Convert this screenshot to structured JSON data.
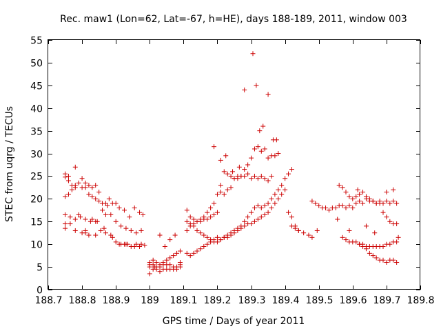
{
  "chart_data": {
    "type": "scatter",
    "title": "Rec. maw1 (Lon=62, Lat=-67, h=HE), days 188-189, 2011, window 003",
    "xlabel": "GPS time / Days of year 2011",
    "ylabel": "STEC from uqrg / TECUs",
    "xlim": [
      188.7,
      189.8
    ],
    "ylim": [
      0,
      55
    ],
    "xticks": [
      188.7,
      188.8,
      188.9,
      189,
      189.1,
      189.2,
      189.3,
      189.4,
      189.5,
      189.6,
      189.7,
      189.8
    ],
    "xtick_labels": [
      "188.7",
      "188.8",
      "188.9",
      "189",
      "189.1",
      "189.2",
      "189.3",
      "189.4",
      "189.5",
      "189.6",
      "189.7",
      "189.8"
    ],
    "yticks": [
      0,
      5,
      10,
      15,
      20,
      25,
      30,
      35,
      40,
      45,
      50,
      55
    ],
    "ytick_labels": [
      "0",
      "5",
      "10",
      "15",
      "20",
      "25",
      "30",
      "35",
      "40",
      "45",
      "50",
      "55"
    ],
    "grid": false,
    "legend": "none",
    "marker_color": "#cc0000",
    "marker": "plus",
    "series": [
      {
        "x": [
          188.75,
          188.75,
          188.76,
          188.77,
          188.78,
          188.79,
          188.8,
          188.81,
          188.82,
          188.83,
          188.84,
          188.85,
          188.86,
          188.875,
          188.89,
          188.9,
          188.91,
          188.925,
          188.94,
          188.955,
          188.97,
          188.98,
          188.75,
          188.76,
          188.77,
          188.78,
          188.8,
          188.81,
          188.82,
          188.83,
          188.84,
          188.85,
          188.86,
          188.87,
          188.885,
          188.9,
          188.915,
          188.93,
          188.945,
          188.96,
          188.975,
          188.75,
          188.765,
          188.78,
          188.795,
          188.81,
          188.825,
          188.84,
          188.855,
          188.87,
          188.885,
          188.9,
          188.915,
          188.93,
          188.945,
          188.96,
          188.975,
          188.75,
          188.765,
          188.78,
          188.8,
          188.81,
          188.82,
          188.84,
          188.865,
          188.89,
          188.91,
          188.925,
          188.935,
          188.955,
          188.97,
          188.985,
          188.75,
          188.76,
          188.78,
          188.79,
          188.81,
          188.83,
          188.845,
          188.87,
          188.88
        ],
        "y": [
          25.5,
          24.8,
          24.0,
          23.0,
          22.5,
          23.5,
          24.5,
          23.5,
          23.0,
          22.5,
          23.0,
          21.5,
          19.0,
          18.5,
          19.0,
          19.0,
          18.0,
          17.5,
          16.0,
          18.0,
          17.0,
          16.5,
          20.5,
          21.0,
          22.0,
          23.0,
          22.5,
          22.5,
          21.0,
          20.5,
          20.0,
          19.5,
          17.5,
          16.5,
          16.5,
          15.0,
          14.0,
          13.5,
          13.0,
          12.5,
          13.0,
          16.5,
          16.0,
          15.5,
          16.0,
          15.5,
          15.0,
          15.0,
          13.0,
          12.5,
          12.0,
          10.5,
          10.0,
          10.0,
          9.5,
          10.0,
          10.0,
          14.5,
          14.5,
          13.0,
          12.5,
          12.5,
          12.0,
          12.0,
          13.5,
          11.5,
          10.0,
          10.0,
          10.0,
          9.5,
          9.5,
          9.8,
          13.5,
          25.0,
          27.0,
          16.5,
          13.0,
          15.5,
          15.0,
          19.0,
          20.0
        ]
      },
      {
        "x": [
          189.0,
          189.01,
          189.02,
          189.03,
          189.04,
          189.05,
          189.06,
          189.07,
          189.08,
          189.09,
          189.0,
          189.01,
          189.02,
          189.03,
          189.04,
          189.05,
          189.06,
          189.07,
          189.08,
          189.09,
          189.0,
          189.01,
          189.02,
          189.03,
          189.04,
          189.05,
          189.06,
          189.07,
          189.08,
          189.09,
          189.0,
          189.015,
          189.03,
          189.045,
          189.06,
          189.075,
          189.09
        ],
        "y": [
          5.5,
          5.5,
          5.0,
          5.0,
          5.5,
          5.5,
          5.5,
          5.0,
          5.0,
          5.5,
          6.0,
          6.5,
          6.0,
          5.5,
          6.0,
          6.5,
          7.0,
          7.5,
          8.0,
          8.5,
          3.5,
          4.5,
          4.5,
          4.0,
          4.5,
          4.5,
          4.5,
          4.5,
          4.5,
          5.0,
          5.0,
          5.0,
          12.0,
          9.5,
          11.0,
          12.0,
          6.0
        ]
      },
      {
        "x": [
          189.11,
          189.12,
          189.13,
          189.14,
          189.15,
          189.16,
          189.17,
          189.18,
          189.19,
          189.2,
          189.21,
          189.22,
          189.23,
          189.24,
          189.25,
          189.26,
          189.27,
          189.28,
          189.29,
          189.3,
          189.31,
          189.32,
          189.33,
          189.34,
          189.35,
          189.36,
          189.37,
          189.38,
          189.39,
          189.4,
          189.41,
          189.42,
          189.11,
          189.12,
          189.13,
          189.14,
          189.15,
          189.16,
          189.17,
          189.18,
          189.19,
          189.2,
          189.21,
          189.22,
          189.23,
          189.24,
          189.25,
          189.26,
          189.27,
          189.28,
          189.29,
          189.3,
          189.31,
          189.32,
          189.33,
          189.34,
          189.35,
          189.36,
          189.37,
          189.38,
          189.39,
          189.4,
          189.11,
          189.12,
          189.13,
          189.14,
          189.15,
          189.16,
          189.17,
          189.18,
          189.19,
          189.2,
          189.21,
          189.22,
          189.23,
          189.24,
          189.25,
          189.26,
          189.27,
          189.28,
          189.29,
          189.3,
          189.31,
          189.32,
          189.33,
          189.34,
          189.35,
          189.36,
          189.37,
          189.38,
          189.11,
          189.12,
          189.13,
          189.14,
          189.15,
          189.16,
          189.17,
          189.18,
          189.19,
          189.2,
          189.21,
          189.22,
          189.23,
          189.24,
          189.25,
          189.26,
          189.27,
          189.28,
          189.29,
          189.3,
          189.31,
          189.32,
          189.33,
          189.34,
          189.35,
          189.36,
          189.19,
          189.21,
          189.225,
          189.245,
          189.265,
          189.28,
          189.305,
          189.315,
          189.325,
          189.335,
          189.35,
          189.365,
          189.375,
          189.42,
          189.43,
          189.44,
          189.455,
          189.47,
          189.48,
          189.495,
          189.41,
          189.42,
          189.43,
          189.44
        ],
        "y": [
          8.0,
          7.5,
          8.0,
          8.5,
          9.0,
          9.5,
          10.0,
          10.5,
          11.0,
          11.5,
          11.0,
          11.5,
          12.0,
          12.5,
          13.0,
          13.5,
          14.0,
          15.0,
          16.0,
          17.0,
          18.0,
          18.5,
          18.0,
          18.5,
          19.0,
          20.0,
          21.0,
          22.0,
          23.0,
          24.5,
          25.5,
          26.5,
          15.0,
          14.5,
          14.0,
          13.0,
          12.5,
          12.0,
          11.5,
          11.0,
          10.5,
          10.5,
          11.0,
          11.5,
          11.5,
          12.0,
          12.5,
          13.0,
          13.5,
          14.0,
          14.5,
          14.5,
          15.0,
          15.5,
          16.0,
          16.5,
          17.0,
          18.0,
          19.0,
          20.0,
          21.0,
          22.0,
          17.5,
          16.0,
          15.5,
          15.0,
          15.0,
          15.5,
          15.5,
          16.0,
          16.5,
          17.0,
          21.5,
          21.0,
          22.0,
          22.5,
          24.5,
          25.0,
          25.0,
          26.5,
          27.5,
          29.0,
          31.0,
          31.5,
          30.5,
          31.0,
          29.0,
          29.5,
          29.5,
          30.0,
          13.0,
          14.0,
          14.5,
          15.0,
          15.5,
          16.0,
          17.0,
          18.0,
          19.0,
          21.0,
          23.0,
          26.0,
          25.5,
          25.0,
          24.5,
          24.5,
          25.0,
          25.0,
          25.5,
          24.5,
          25.0,
          24.5,
          25.0,
          24.5,
          24.0,
          25.0,
          31.5,
          28.5,
          29.5,
          26.0,
          27.0,
          44.0,
          52.0,
          45.0,
          35.0,
          36.0,
          43.0,
          33.0,
          33.0,
          14.0,
          13.5,
          13.0,
          12.5,
          12.0,
          11.5,
          13.0,
          17.0,
          16.0,
          14.0,
          13.0
        ]
      },
      {
        "x": [
          189.48,
          189.49,
          189.5,
          189.51,
          189.52,
          189.53,
          189.54,
          189.55,
          189.56,
          189.57,
          189.58,
          189.59,
          189.6,
          189.61,
          189.62,
          189.63,
          189.64,
          189.65,
          189.66,
          189.67,
          189.68,
          189.69,
          189.7,
          189.71,
          189.72,
          189.73,
          189.56,
          189.57,
          189.58,
          189.59,
          189.6,
          189.61,
          189.62,
          189.63,
          189.64,
          189.65,
          189.66,
          189.67,
          189.68,
          189.69,
          189.7,
          189.71,
          189.72,
          189.73,
          189.57,
          189.58,
          189.59,
          189.6,
          189.61,
          189.62,
          189.63,
          189.64,
          189.65,
          189.66,
          189.67,
          189.68,
          189.69,
          189.7,
          189.71,
          189.72,
          189.73,
          189.62,
          189.63,
          189.64,
          189.65,
          189.66,
          189.67,
          189.68,
          189.69,
          189.7,
          189.71,
          189.72,
          189.73,
          189.555,
          189.59,
          189.615,
          189.64,
          189.665,
          189.7,
          189.72,
          189.735
        ],
        "y": [
          19.5,
          19.0,
          18.5,
          18.0,
          18.0,
          17.5,
          18.0,
          18.0,
          18.5,
          18.5,
          18.0,
          18.5,
          18.0,
          19.0,
          19.5,
          19.0,
          20.0,
          19.5,
          19.5,
          19.0,
          19.0,
          19.0,
          19.5,
          19.0,
          19.5,
          19.0,
          23.0,
          22.5,
          21.5,
          20.5,
          20.0,
          20.5,
          21.0,
          21.5,
          20.5,
          20.0,
          19.5,
          19.0,
          19.5,
          17.0,
          16.0,
          15.0,
          14.5,
          14.5,
          11.5,
          11.0,
          10.5,
          10.5,
          10.5,
          10.0,
          10.0,
          9.5,
          9.5,
          9.5,
          9.5,
          9.5,
          9.5,
          10.0,
          10.0,
          10.5,
          10.5,
          10.0,
          9.5,
          9.0,
          8.0,
          7.5,
          7.0,
          6.5,
          6.5,
          6.0,
          6.5,
          6.5,
          6.0,
          15.5,
          13.0,
          22.0,
          14.0,
          12.5,
          21.5,
          22.0,
          11.5
        ]
      }
    ]
  }
}
